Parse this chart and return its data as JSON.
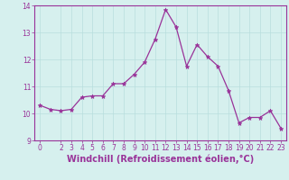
{
  "x": [
    0,
    1,
    2,
    3,
    4,
    5,
    6,
    7,
    8,
    9,
    10,
    11,
    12,
    13,
    14,
    15,
    16,
    17,
    18,
    19,
    20,
    21,
    22,
    23
  ],
  "y": [
    10.3,
    10.15,
    10.1,
    10.15,
    10.6,
    10.65,
    10.65,
    11.1,
    11.1,
    11.45,
    11.9,
    12.75,
    13.85,
    13.2,
    11.75,
    12.55,
    12.1,
    11.75,
    10.85,
    9.65,
    9.85,
    9.85,
    10.1,
    9.45
  ],
  "line_color": "#993399",
  "marker": "*",
  "markersize": 3.5,
  "linewidth": 0.9,
  "xlabel": "Windchill (Refroidissement éolien,°C)",
  "xlabel_fontsize": 7.0,
  "xlabel_color": "#993399",
  "xlim": [
    -0.5,
    23.5
  ],
  "ylim": [
    9,
    14
  ],
  "yticks": [
    9,
    10,
    11,
    12,
    13,
    14
  ],
  "xticks": [
    0,
    2,
    3,
    4,
    5,
    6,
    7,
    8,
    9,
    10,
    11,
    12,
    13,
    14,
    15,
    16,
    17,
    18,
    19,
    20,
    21,
    22,
    23
  ],
  "xtick_labels": [
    "0",
    "2",
    "3",
    "4",
    "5",
    "6",
    "7",
    "8",
    "9",
    "10",
    "11",
    "12",
    "13",
    "14",
    "15",
    "16",
    "17",
    "18",
    "19",
    "20",
    "21",
    "22",
    "23"
  ],
  "tick_fontsize": 5.5,
  "tick_color": "#993399",
  "bg_color": "#d6f0ee",
  "grid_color": "#b8dedd",
  "spine_color": "#993399"
}
